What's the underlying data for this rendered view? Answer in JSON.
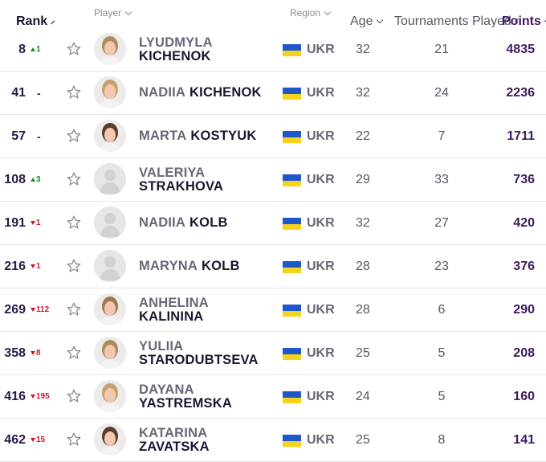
{
  "header": {
    "rank": "Rank",
    "player": "Player",
    "region": "Region",
    "age": "Age",
    "tournaments": "Tournaments Played",
    "points": "Points"
  },
  "colors": {
    "move_up": "#1a8a2b",
    "move_down": "#d0142c",
    "flag_blue": "#1d57c9",
    "flag_yellow": "#f7d21a"
  },
  "rows": [
    {
      "rank": "8",
      "move_dir": "up",
      "move": "1",
      "first": "LYUDMYLA",
      "last": "KICHENOK",
      "layout": "two",
      "photo": true,
      "country": "UKR",
      "age": "32",
      "tournaments": "21",
      "points": "4835"
    },
    {
      "rank": "41",
      "move_dir": "none",
      "move": "-",
      "first": "NADIIA",
      "last": "KICHENOK",
      "layout": "one",
      "photo": true,
      "country": "UKR",
      "age": "32",
      "tournaments": "24",
      "points": "2236"
    },
    {
      "rank": "57",
      "move_dir": "none",
      "move": "-",
      "first": "MARTA",
      "last": "KOSTYUK",
      "layout": "one",
      "photo": true,
      "country": "UKR",
      "age": "22",
      "tournaments": "7",
      "points": "1711"
    },
    {
      "rank": "108",
      "move_dir": "up",
      "move": "3",
      "first": "VALERIYA",
      "last": "STRAKHOVA",
      "layout": "two",
      "photo": false,
      "country": "UKR",
      "age": "29",
      "tournaments": "33",
      "points": "736"
    },
    {
      "rank": "191",
      "move_dir": "down",
      "move": "1",
      "first": "NADIIA",
      "last": "KOLB",
      "layout": "one",
      "photo": false,
      "country": "UKR",
      "age": "32",
      "tournaments": "27",
      "points": "420"
    },
    {
      "rank": "216",
      "move_dir": "down",
      "move": "1",
      "first": "MARYNA",
      "last": "KOLB",
      "layout": "one",
      "photo": false,
      "country": "UKR",
      "age": "28",
      "tournaments": "23",
      "points": "376"
    },
    {
      "rank": "269",
      "move_dir": "down",
      "move": "112",
      "first": "ANHELINA",
      "last": "KALININA",
      "layout": "two",
      "photo": true,
      "country": "UKR",
      "age": "28",
      "tournaments": "6",
      "points": "290"
    },
    {
      "rank": "358",
      "move_dir": "down",
      "move": "8",
      "first": "YULIIA",
      "last": "STARODUBTSEVA",
      "layout": "two",
      "photo": true,
      "country": "UKR",
      "age": "25",
      "tournaments": "5",
      "points": "208"
    },
    {
      "rank": "416",
      "move_dir": "down",
      "move": "195",
      "first": "DAYANA",
      "last": "YASTREMSKA",
      "layout": "two",
      "photo": true,
      "country": "UKR",
      "age": "24",
      "tournaments": "5",
      "points": "160"
    },
    {
      "rank": "462",
      "move_dir": "down",
      "move": "15",
      "first": "KATARINA",
      "last": "ZAVATSKA",
      "layout": "two",
      "photo": true,
      "country": "UKR",
      "age": "25",
      "tournaments": "8",
      "points": "141"
    }
  ]
}
